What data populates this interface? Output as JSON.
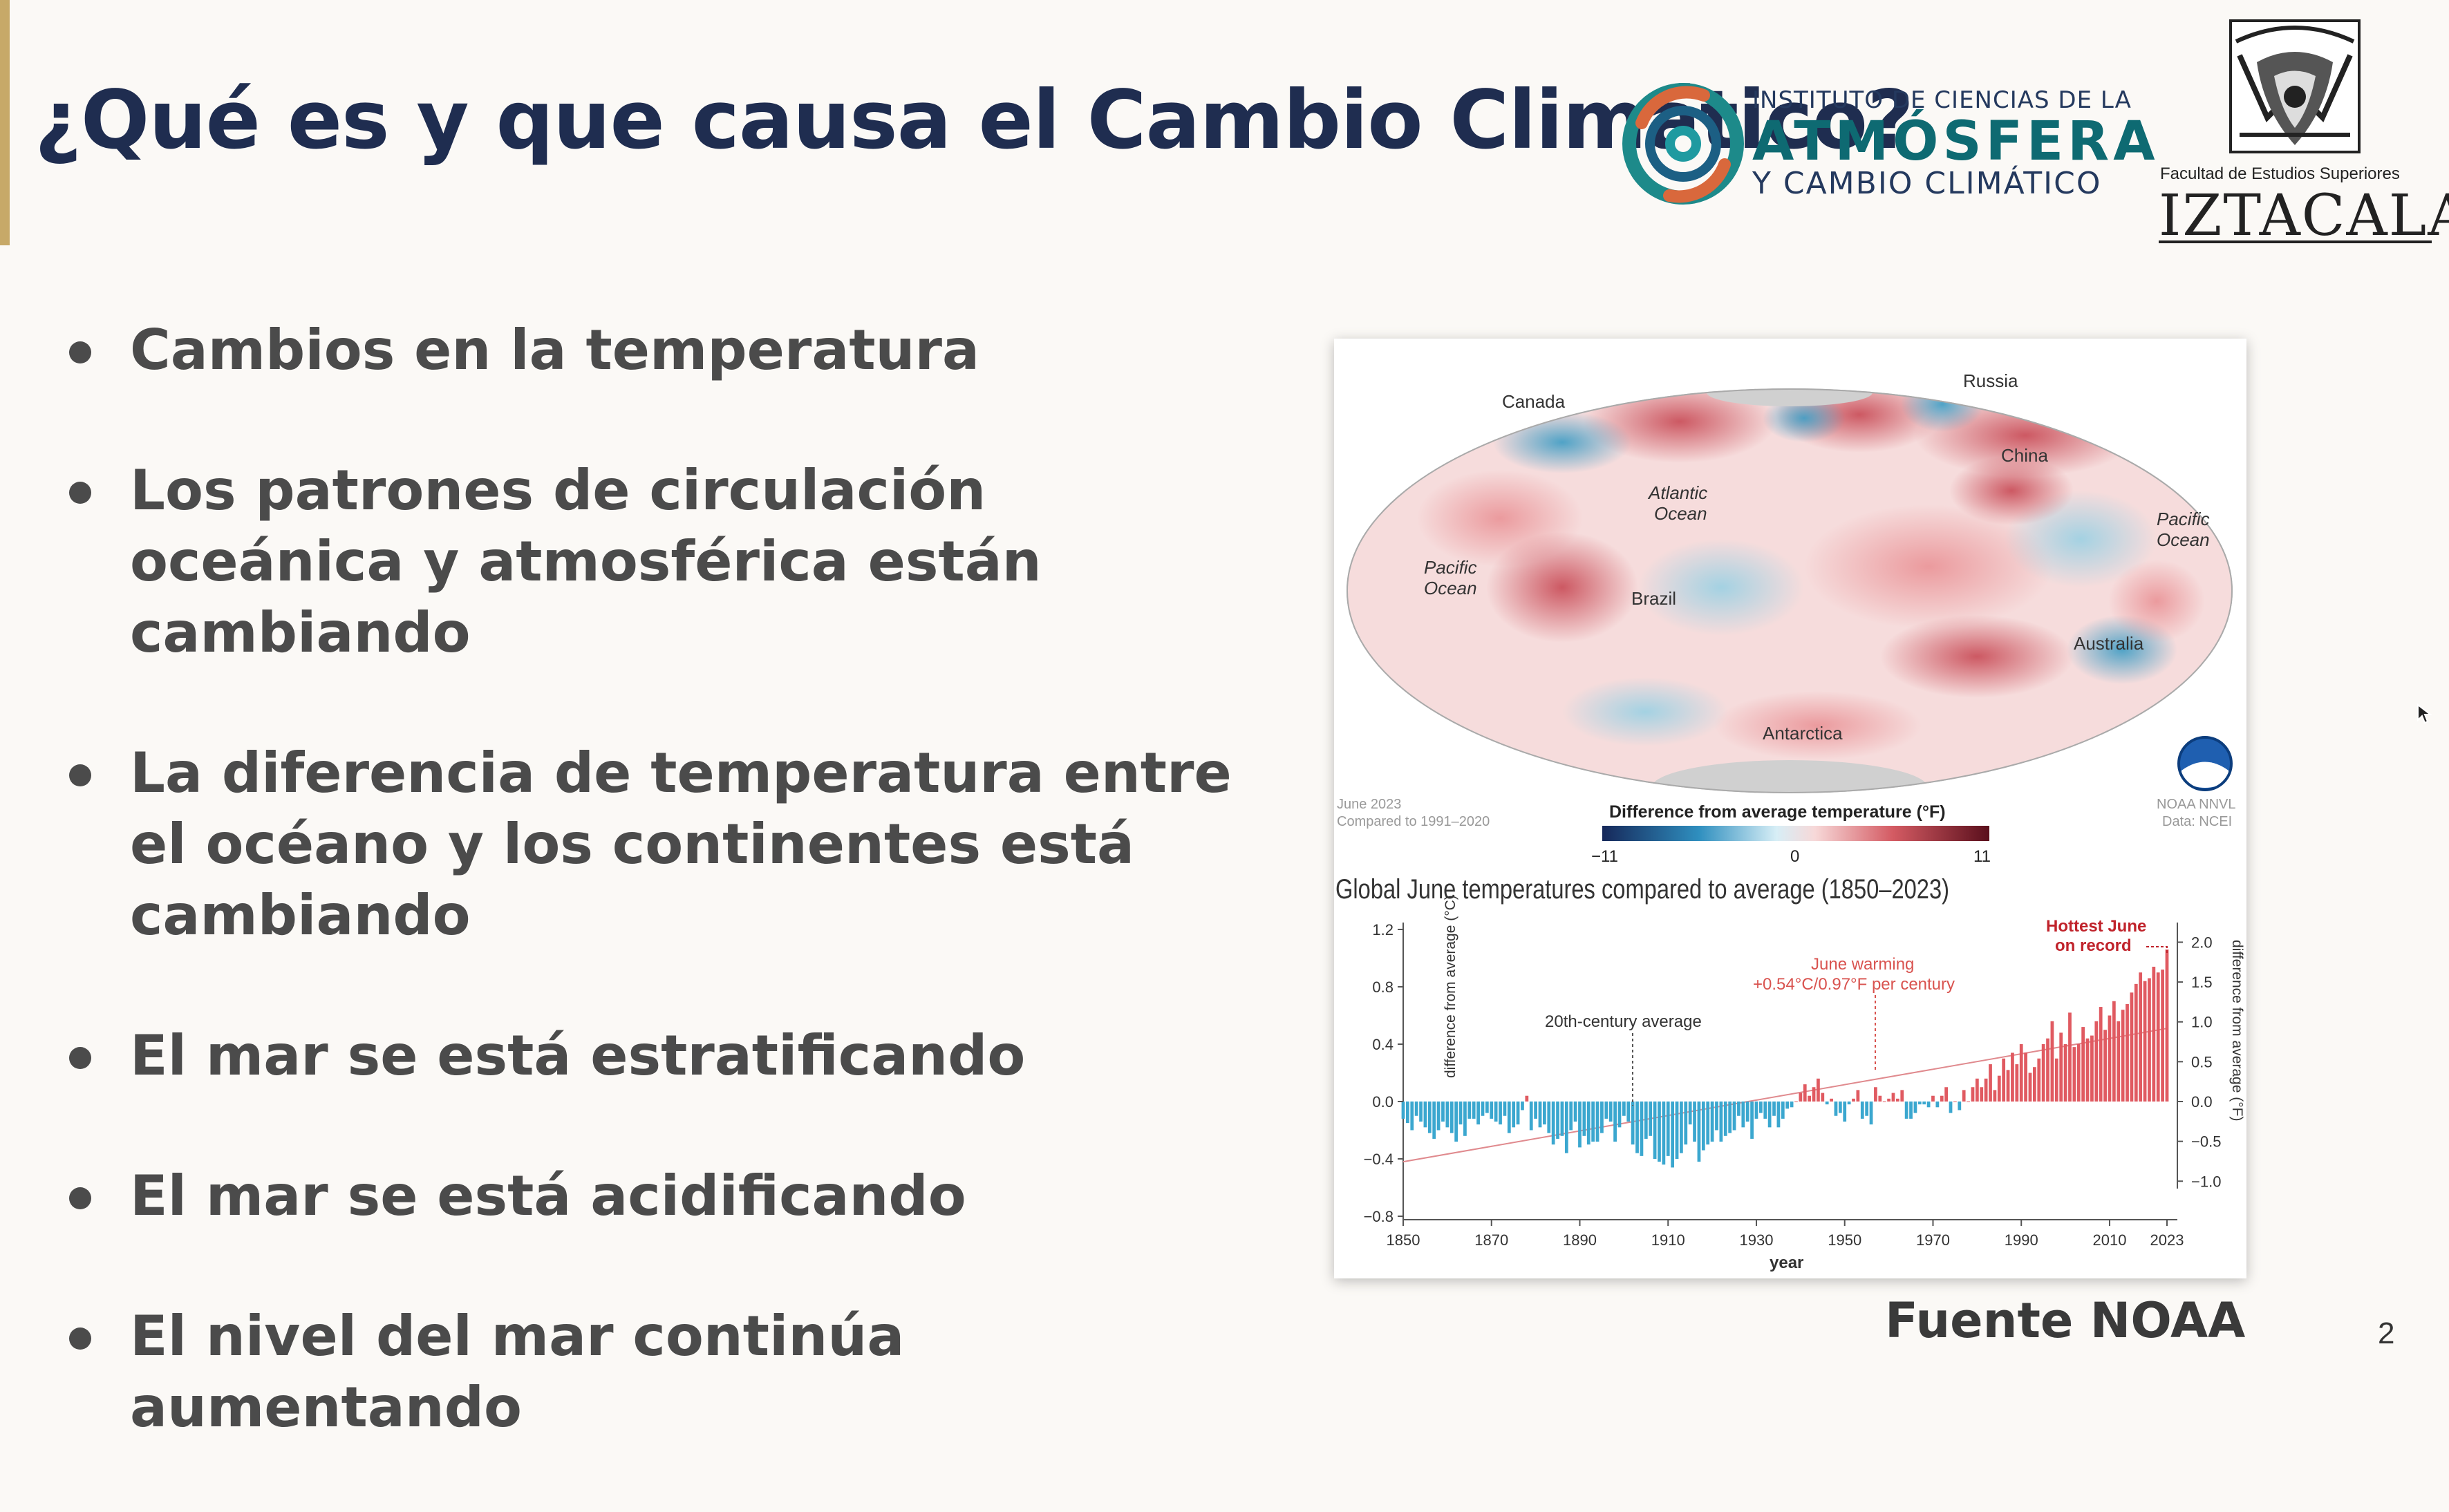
{
  "slide": {
    "title": "¿Qué es y que causa el Cambio Climático?",
    "page_number": "2",
    "source": "Fuente NOAA",
    "accent_color": "#c7a968",
    "title_color": "#1f2d50"
  },
  "logos": {
    "institute": {
      "line1": "INSTITUTO DE CIENCIAS DE LA",
      "line2": "ATMÓSFERA",
      "line3": "Y CAMBIO CLIMÁTICO"
    },
    "unam": {
      "faculty": "Facultad de Estudios Superiores",
      "name": "IZTACALA"
    }
  },
  "bullets": [
    {
      "text": "Cambios en la temperatura"
    },
    {
      "text": "Los patrones de circulación oceánica y atmosférica están cambiando"
    },
    {
      "text": "La diferencia de temperatura entre el océano y los continentes está cambiando"
    },
    {
      "text": "El mar se está estratificando"
    },
    {
      "text": "El mar se está acidificando"
    },
    {
      "text": "El nivel del mar continúa aumentando"
    }
  ],
  "map": {
    "labels": {
      "canada": "Canada",
      "russia": "Russia",
      "china": "China",
      "atlantic": "Atlantic",
      "atlantic2": "Ocean",
      "pacific_w": "Pacific",
      "pacific_w2": "Ocean",
      "pacific_e": "Pacific",
      "pacific_e2": "Ocean",
      "brazil": "Brazil",
      "australia": "Australia",
      "antarctica": "Antarctica"
    },
    "date": "June 2023",
    "compared": "Compared to 1991–2020",
    "credit1": "NOAA NNVL",
    "credit2": "Data: NCEI",
    "legend_title": "Difference from average temperature (°F)",
    "legend_min": "−11",
    "legend_mid": "0",
    "legend_max": "11"
  },
  "chart_data": {
    "type": "bar",
    "title": "Global June temperatures compared to average (1850–2023)",
    "xlabel": "year",
    "ylabel": "difference from average (°C)",
    "ylabel_right": "difference from average (°F)",
    "xlim": [
      1850,
      2023
    ],
    "ylim": [
      -0.8,
      1.2
    ],
    "xticks": [
      "1850",
      "1870",
      "1890",
      "1910",
      "1930",
      "1950",
      "1970",
      "1990",
      "2010",
      "2023"
    ],
    "yticks": [
      "1.2",
      "0.8",
      "0.4",
      "0.0",
      "−0.4",
      "−0.8"
    ],
    "yticks_right": [
      "2.0",
      "1.5",
      "1.0",
      "0.5",
      "0.0",
      "−0.5",
      "−1.0"
    ],
    "positive_color": "#e05a61",
    "negative_color": "#3ba7cf",
    "annotations": {
      "century_avg": "20th-century average",
      "warming1": "June warming",
      "warming2": "+0.54°C/0.97°F per century",
      "hottest1": "Hottest June",
      "hottest2": "on record"
    },
    "trend": {
      "start_year": 1850,
      "start": -0.42,
      "end_year": 2023,
      "end": 0.51
    },
    "years": [
      1850,
      1851,
      1852,
      1853,
      1854,
      1855,
      1856,
      1857,
      1858,
      1859,
      1860,
      1861,
      1862,
      1863,
      1864,
      1865,
      1866,
      1867,
      1868,
      1869,
      1870,
      1871,
      1872,
      1873,
      1874,
      1875,
      1876,
      1877,
      1878,
      1879,
      1880,
      1881,
      1882,
      1883,
      1884,
      1885,
      1886,
      1887,
      1888,
      1889,
      1890,
      1891,
      1892,
      1893,
      1894,
      1895,
      1896,
      1897,
      1898,
      1899,
      1900,
      1901,
      1902,
      1903,
      1904,
      1905,
      1906,
      1907,
      1908,
      1909,
      1910,
      1911,
      1912,
      1913,
      1914,
      1915,
      1916,
      1917,
      1918,
      1919,
      1920,
      1921,
      1922,
      1923,
      1924,
      1925,
      1926,
      1927,
      1928,
      1929,
      1930,
      1931,
      1932,
      1933,
      1934,
      1935,
      1936,
      1937,
      1938,
      1939,
      1940,
      1941,
      1942,
      1943,
      1944,
      1945,
      1946,
      1947,
      1948,
      1949,
      1950,
      1951,
      1952,
      1953,
      1954,
      1955,
      1956,
      1957,
      1958,
      1959,
      1960,
      1961,
      1962,
      1963,
      1964,
      1965,
      1966,
      1967,
      1968,
      1969,
      1970,
      1971,
      1972,
      1973,
      1974,
      1975,
      1976,
      1977,
      1978,
      1979,
      1980,
      1981,
      1982,
      1983,
      1984,
      1985,
      1986,
      1987,
      1988,
      1989,
      1990,
      1991,
      1992,
      1993,
      1994,
      1995,
      1996,
      1997,
      1998,
      1999,
      2000,
      2001,
      2002,
      2003,
      2004,
      2005,
      2006,
      2007,
      2008,
      2009,
      2010,
      2011,
      2012,
      2013,
      2014,
      2015,
      2016,
      2017,
      2018,
      2019,
      2020,
      2021,
      2022,
      2023
    ],
    "values": [
      -0.12,
      -0.15,
      -0.2,
      -0.1,
      -0.14,
      -0.18,
      -0.22,
      -0.26,
      -0.2,
      -0.14,
      -0.18,
      -0.22,
      -0.28,
      -0.16,
      -0.24,
      -0.12,
      -0.12,
      -0.16,
      -0.1,
      -0.08,
      -0.12,
      -0.14,
      -0.16,
      -0.1,
      -0.22,
      -0.18,
      -0.16,
      -0.06,
      0.04,
      -0.2,
      -0.12,
      -0.18,
      -0.16,
      -0.22,
      -0.3,
      -0.26,
      -0.24,
      -0.36,
      -0.2,
      -0.14,
      -0.32,
      -0.24,
      -0.3,
      -0.28,
      -0.28,
      -0.22,
      -0.12,
      -0.14,
      -0.28,
      -0.18,
      -0.1,
      -0.14,
      -0.3,
      -0.36,
      -0.38,
      -0.26,
      -0.24,
      -0.4,
      -0.42,
      -0.44,
      -0.38,
      -0.46,
      -0.4,
      -0.36,
      -0.3,
      -0.16,
      -0.28,
      -0.42,
      -0.34,
      -0.3,
      -0.28,
      -0.2,
      -0.28,
      -0.24,
      -0.22,
      -0.2,
      -0.1,
      -0.18,
      -0.14,
      -0.26,
      -0.12,
      -0.08,
      -0.12,
      -0.18,
      -0.1,
      -0.18,
      -0.12,
      -0.05,
      -0.04,
      0.0,
      0.06,
      0.12,
      0.04,
      0.1,
      0.16,
      0.06,
      -0.02,
      0.02,
      -0.1,
      -0.08,
      -0.14,
      -0.02,
      0.02,
      0.08,
      -0.12,
      -0.1,
      -0.16,
      0.1,
      0.04,
      0.0,
      0.02,
      0.06,
      0.02,
      0.08,
      -0.12,
      -0.12,
      -0.08,
      -0.02,
      -0.02,
      -0.04,
      0.04,
      -0.04,
      0.04,
      0.1,
      -0.08,
      0.0,
      -0.06,
      0.08,
      0.0,
      0.1,
      0.16,
      0.1,
      0.16,
      0.26,
      0.08,
      0.18,
      0.3,
      0.22,
      0.34,
      0.26,
      0.4,
      0.34,
      0.2,
      0.24,
      0.3,
      0.4,
      0.44,
      0.56,
      0.3,
      0.48,
      0.4,
      0.62,
      0.38,
      0.4,
      0.52,
      0.44,
      0.46,
      0.56,
      0.66,
      0.5,
      0.6,
      0.7,
      0.56,
      0.64,
      0.68,
      0.76,
      0.82,
      0.9,
      0.84,
      0.86,
      0.94,
      0.9,
      0.92,
      1.06
    ]
  }
}
